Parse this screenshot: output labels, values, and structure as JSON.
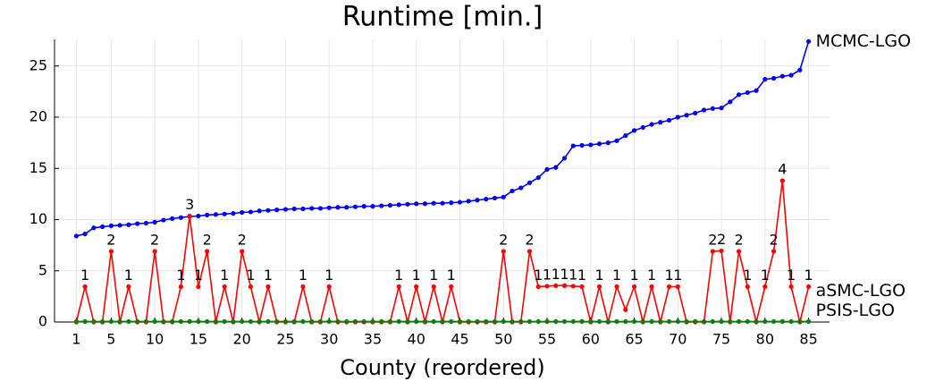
{
  "chart_data": {
    "type": "line",
    "title": "Runtime [min.]",
    "x_label": "County (reordered)",
    "x": [
      1,
      2,
      3,
      4,
      5,
      6,
      7,
      8,
      9,
      10,
      11,
      12,
      13,
      14,
      15,
      16,
      17,
      18,
      19,
      20,
      21,
      22,
      23,
      24,
      25,
      26,
      27,
      28,
      29,
      30,
      31,
      32,
      33,
      34,
      35,
      36,
      37,
      38,
      39,
      40,
      41,
      42,
      43,
      44,
      45,
      46,
      47,
      48,
      49,
      50,
      51,
      52,
      53,
      54,
      55,
      56,
      57,
      58,
      59,
      60,
      61,
      62,
      63,
      64,
      65,
      66,
      67,
      68,
      69,
      70,
      71,
      72,
      73,
      74,
      75,
      76,
      77,
      78,
      79,
      80,
      81,
      82,
      83,
      84,
      85
    ],
    "xlim": [
      -1.5,
      87.4
    ],
    "xticks": [
      1,
      5,
      10,
      15,
      20,
      25,
      30,
      35,
      40,
      45,
      50,
      55,
      60,
      65,
      70,
      75,
      80,
      85
    ],
    "ylim": [
      0,
      27.6
    ],
    "yticks": [
      0,
      5,
      10,
      15,
      20,
      25
    ],
    "grid": true,
    "series": [
      {
        "name": "MCMC-LGO",
        "color": "#0000ff",
        "values": [
          8.4,
          8.6,
          9.2,
          9.3,
          9.4,
          9.45,
          9.5,
          9.6,
          9.65,
          9.75,
          9.95,
          10.1,
          10.2,
          10.3,
          10.35,
          10.45,
          10.5,
          10.55,
          10.6,
          10.7,
          10.75,
          10.85,
          10.9,
          10.95,
          11.0,
          11.05,
          11.05,
          11.1,
          11.1,
          11.15,
          11.2,
          11.2,
          11.25,
          11.3,
          11.3,
          11.35,
          11.4,
          11.45,
          11.5,
          11.55,
          11.55,
          11.6,
          11.6,
          11.65,
          11.7,
          11.8,
          11.9,
          12.0,
          12.1,
          12.2,
          12.8,
          13.1,
          13.6,
          14.1,
          14.9,
          15.1,
          16.0,
          17.2,
          17.25,
          17.3,
          17.4,
          17.5,
          17.7,
          18.2,
          18.7,
          19.0,
          19.3,
          19.5,
          19.7,
          20.0,
          20.2,
          20.4,
          20.7,
          20.85,
          20.9,
          21.5,
          22.2,
          22.4,
          22.6,
          23.7,
          23.8,
          24.0,
          24.1,
          24.6,
          27.4
        ]
      },
      {
        "name": "aSMC-LGO",
        "color": "#ff0000",
        "values": [
          0,
          3.45,
          0,
          0,
          6.9,
          0,
          3.45,
          0,
          0,
          6.9,
          0,
          0,
          3.45,
          10.35,
          3.45,
          6.9,
          0,
          3.45,
          0,
          6.9,
          3.45,
          0,
          3.45,
          0,
          0,
          0,
          3.45,
          0,
          0,
          3.45,
          0,
          0,
          0,
          0,
          0,
          0,
          0,
          3.45,
          0,
          3.45,
          0,
          3.45,
          0,
          3.45,
          0,
          0,
          0,
          0,
          0,
          6.9,
          0,
          0,
          6.9,
          3.45,
          3.5,
          3.55,
          3.55,
          3.5,
          3.45,
          0,
          3.45,
          0,
          3.45,
          1.2,
          3.45,
          0,
          3.45,
          0,
          3.45,
          3.45,
          0,
          0,
          0,
          6.9,
          6.95,
          0,
          6.9,
          3.45,
          0,
          3.45,
          6.9,
          13.8,
          3.45,
          0,
          3.45
        ],
        "counts": [
          null,
          1,
          null,
          null,
          2,
          null,
          1,
          null,
          null,
          2,
          null,
          null,
          1,
          3,
          1,
          2,
          null,
          1,
          null,
          2,
          1,
          null,
          1,
          null,
          null,
          null,
          1,
          null,
          null,
          1,
          null,
          null,
          null,
          null,
          null,
          null,
          null,
          1,
          null,
          1,
          null,
          1,
          null,
          1,
          null,
          null,
          null,
          null,
          null,
          2,
          null,
          null,
          2,
          1,
          1,
          1,
          1,
          1,
          1,
          null,
          1,
          null,
          1,
          null,
          1,
          null,
          1,
          null,
          1,
          1,
          null,
          null,
          null,
          2,
          2,
          null,
          2,
          1,
          null,
          1,
          2,
          4,
          1,
          null,
          1
        ]
      },
      {
        "name": "PSIS-LGO",
        "color": "#008000",
        "values": [
          0.05,
          0.05,
          0.05,
          0.05,
          0.05,
          0.05,
          0.05,
          0.05,
          0.05,
          0.05,
          0.05,
          0.05,
          0.05,
          0.05,
          0.05,
          0.05,
          0.05,
          0.05,
          0.05,
          0.05,
          0.05,
          0.05,
          0.05,
          0.05,
          0.05,
          0.05,
          0.05,
          0.05,
          0.05,
          0.05,
          0.05,
          0.05,
          0.05,
          0.05,
          0.05,
          0.05,
          0.05,
          0.05,
          0.05,
          0.05,
          0.05,
          0.05,
          0.05,
          0.05,
          0.05,
          0.05,
          0.05,
          0.05,
          0.05,
          0.05,
          0.05,
          0.05,
          0.05,
          0.05,
          0.05,
          0.05,
          0.05,
          0.05,
          0.05,
          0.05,
          0.05,
          0.05,
          0.05,
          0.05,
          0.05,
          0.05,
          0.05,
          0.05,
          0.05,
          0.05,
          0.05,
          0.05,
          0.05,
          0.05,
          0.05,
          0.05,
          0.05,
          0.05,
          0.05,
          0.05,
          0.05,
          0.05,
          0.05,
          0.05,
          0.05
        ]
      }
    ]
  }
}
